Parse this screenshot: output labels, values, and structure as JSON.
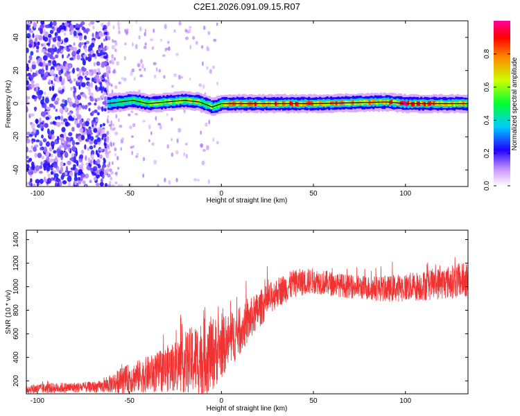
{
  "title": "C2E1.2026.091.09.15.R07",
  "chart_data": [
    {
      "type": "heatmap",
      "xlabel": "Height of straight line (km)",
      "ylabel": "Frequency (Hz)",
      "xlim": [
        -106,
        134
      ],
      "ylim": [
        -50,
        50
      ],
      "xticks": [
        -100,
        -50,
        0,
        50,
        100
      ],
      "yticks": [
        -40,
        -20,
        0,
        20,
        40
      ],
      "colorbar": {
        "label": "Normalized spectral amplitude",
        "range": [
          0,
          1
        ],
        "ticks": [
          "0.0",
          "0.2",
          "0.4",
          "0.6",
          "0.8"
        ]
      },
      "signal_ridge": {
        "description_values": "frequency (Hz) of dominant tone vs height (km)",
        "x": [
          -62,
          -55,
          -48,
          -40,
          -30,
          -20,
          -12,
          -5,
          0,
          20,
          50,
          90,
          100,
          134
        ],
        "freq": [
          0,
          1,
          2,
          0,
          1,
          2,
          1,
          -2,
          0,
          0,
          0,
          1,
          0,
          0
        ],
        "amplitude": [
          0.35,
          0.45,
          0.5,
          0.55,
          0.6,
          0.65,
          0.6,
          0.55,
          0.7,
          0.85,
          0.8,
          0.75,
          0.9,
          0.7
        ]
      },
      "noise_region": {
        "x_range": [
          -106,
          -62
        ],
        "freq_range": [
          -50,
          50
        ],
        "amplitude": 0.15
      }
    },
    {
      "type": "line",
      "xlabel": "Height of straight line (km)",
      "ylabel": "SNR (10 * v/v)",
      "xlim": [
        -106,
        134
      ],
      "ylim": [
        90,
        1480
      ],
      "xticks": [
        -100,
        -50,
        0,
        50,
        100
      ],
      "yticks": [
        200,
        400,
        600,
        800,
        1000,
        1200,
        1400
      ],
      "color": "#f03232",
      "envelope": {
        "x": [
          -106,
          -90,
          -75,
          -65,
          -55,
          -45,
          -35,
          -25,
          -15,
          -10,
          -5,
          0,
          10,
          20,
          30,
          40,
          50,
          70,
          90,
          110,
          134
        ],
        "mean": [
          130,
          140,
          145,
          150,
          200,
          240,
          270,
          330,
          380,
          400,
          430,
          480,
          620,
          800,
          950,
          1030,
          1050,
          1000,
          980,
          1010,
          1060
        ],
        "spread": [
          40,
          45,
          45,
          50,
          110,
          140,
          170,
          220,
          300,
          330,
          320,
          260,
          200,
          160,
          130,
          120,
          110,
          100,
          110,
          130,
          150
        ]
      }
    }
  ]
}
